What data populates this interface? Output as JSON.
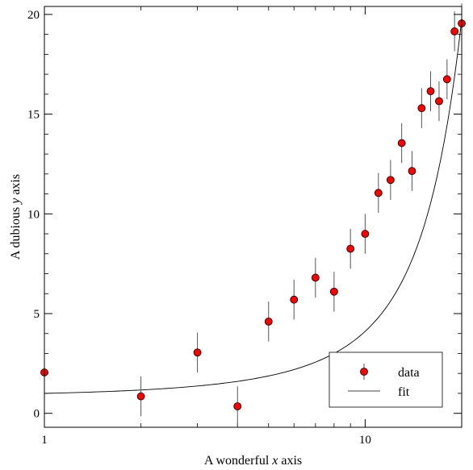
{
  "chart_data": {
    "type": "scatter",
    "xlabel_prefix": "A wonderful ",
    "xlabel_var": "x",
    "xlabel_suffix": " axis",
    "ylabel_prefix": "A dubious ",
    "ylabel_var": "y",
    "ylabel_suffix": " axis",
    "x_scale": "log",
    "xlim": [
      1,
      20
    ],
    "ylim": [
      -0.7,
      20.4
    ],
    "x_ticks": [
      1,
      10
    ],
    "x_tick_labels": [
      "1",
      "10"
    ],
    "y_ticks": [
      0,
      5,
      10,
      15,
      20
    ],
    "y_tick_labels": [
      "0",
      "5",
      "10",
      "15",
      "20"
    ],
    "legend_position": "bottom-right",
    "series": [
      {
        "name": "data",
        "kind": "errorbar-markers",
        "color": "#ff0000",
        "edge_color": "#000000",
        "x": [
          1,
          2,
          3,
          4,
          5,
          6,
          7,
          8,
          9,
          10,
          11,
          12,
          13,
          14,
          15,
          16,
          17,
          18,
          19,
          20
        ],
        "y": [
          2.05,
          0.85,
          3.05,
          0.35,
          4.6,
          5.7,
          6.8,
          6.1,
          8.25,
          9.0,
          11.05,
          11.7,
          13.55,
          12.15,
          15.3,
          16.15,
          15.65,
          16.75,
          19.15,
          19.55
        ],
        "yerr": [
          1.0,
          1.0,
          1.0,
          1.0,
          1.0,
          1.0,
          1.0,
          1.0,
          1.0,
          1.0,
          1.0,
          1.0,
          1.0,
          1.0,
          1.0,
          1.0,
          1.0,
          1.0,
          1.0,
          1.0
        ]
      },
      {
        "name": "fit",
        "kind": "line",
        "color": "#000000",
        "model": "exponential",
        "params": {
          "a": 1.0,
          "b": 0.157
        }
      }
    ]
  }
}
